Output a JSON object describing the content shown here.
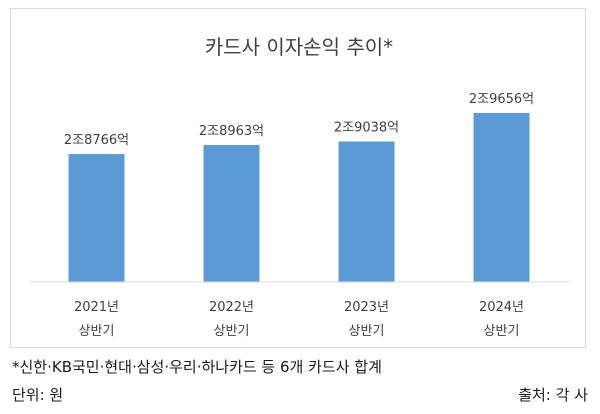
{
  "chart_data": {
    "type": "bar",
    "title": "카드사 이자손익 추이*",
    "categories": [
      {
        "line1": "2021년",
        "line2": "상반기"
      },
      {
        "line1": "2022년",
        "line2": "상반기"
      },
      {
        "line1": "2023년",
        "line2": "상반기"
      },
      {
        "line1": "2024년",
        "line2": "상반기"
      }
    ],
    "values": [
      28766,
      28963,
      29038,
      29656
    ],
    "data_labels": [
      "2조8766억",
      "2조8963억",
      "2조9038억",
      "2조9656억"
    ],
    "ylim": [
      26000,
      30000
    ],
    "grid": false,
    "legend": "none",
    "bar_color": "#5b9bd5",
    "axis_color": "#d9d9d9",
    "text_color": "#404040"
  },
  "footnote": "*신한·KB국민·현대·삼성·우리·하나카드 등 6개 카드사 합계",
  "unit": "단위: 원",
  "source": "출처: 각 사"
}
